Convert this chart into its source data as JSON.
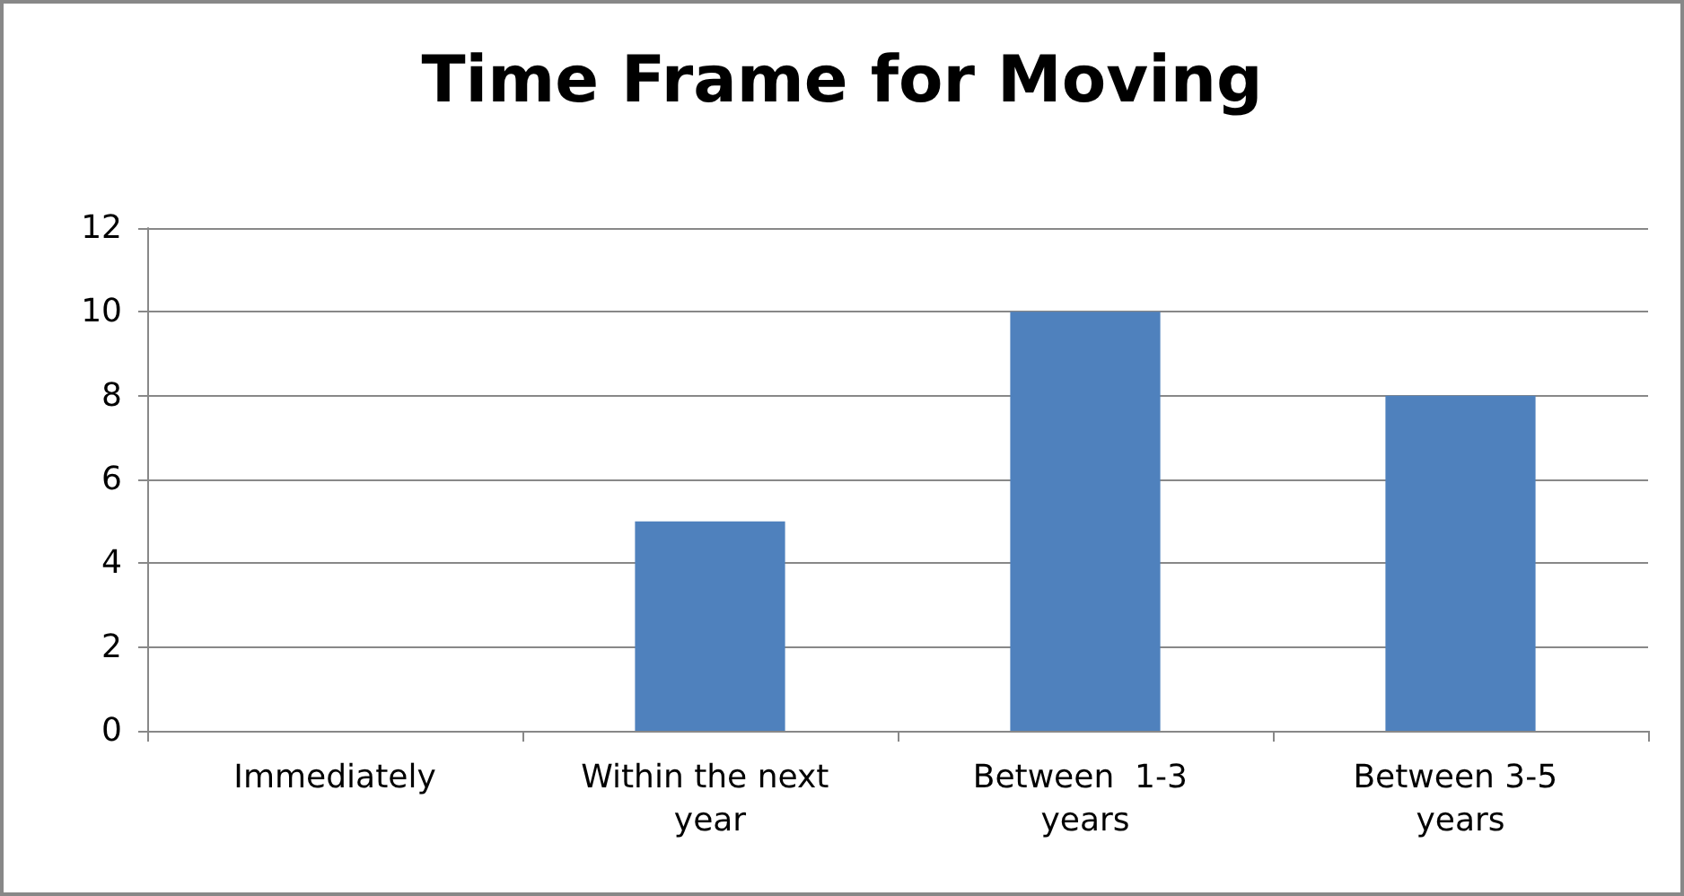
{
  "chart_data": {
    "type": "bar",
    "title": "Time Frame for Moving",
    "categories": [
      "Immediately",
      "Within the next year",
      "Between  1-3 years",
      "Between 3-5 years"
    ],
    "values": [
      0,
      5,
      10,
      8
    ],
    "color": "#4f81bd",
    "ylim": [
      0,
      12
    ],
    "yticks": [
      0,
      2,
      4,
      6,
      8,
      10,
      12
    ],
    "grid": "y"
  }
}
